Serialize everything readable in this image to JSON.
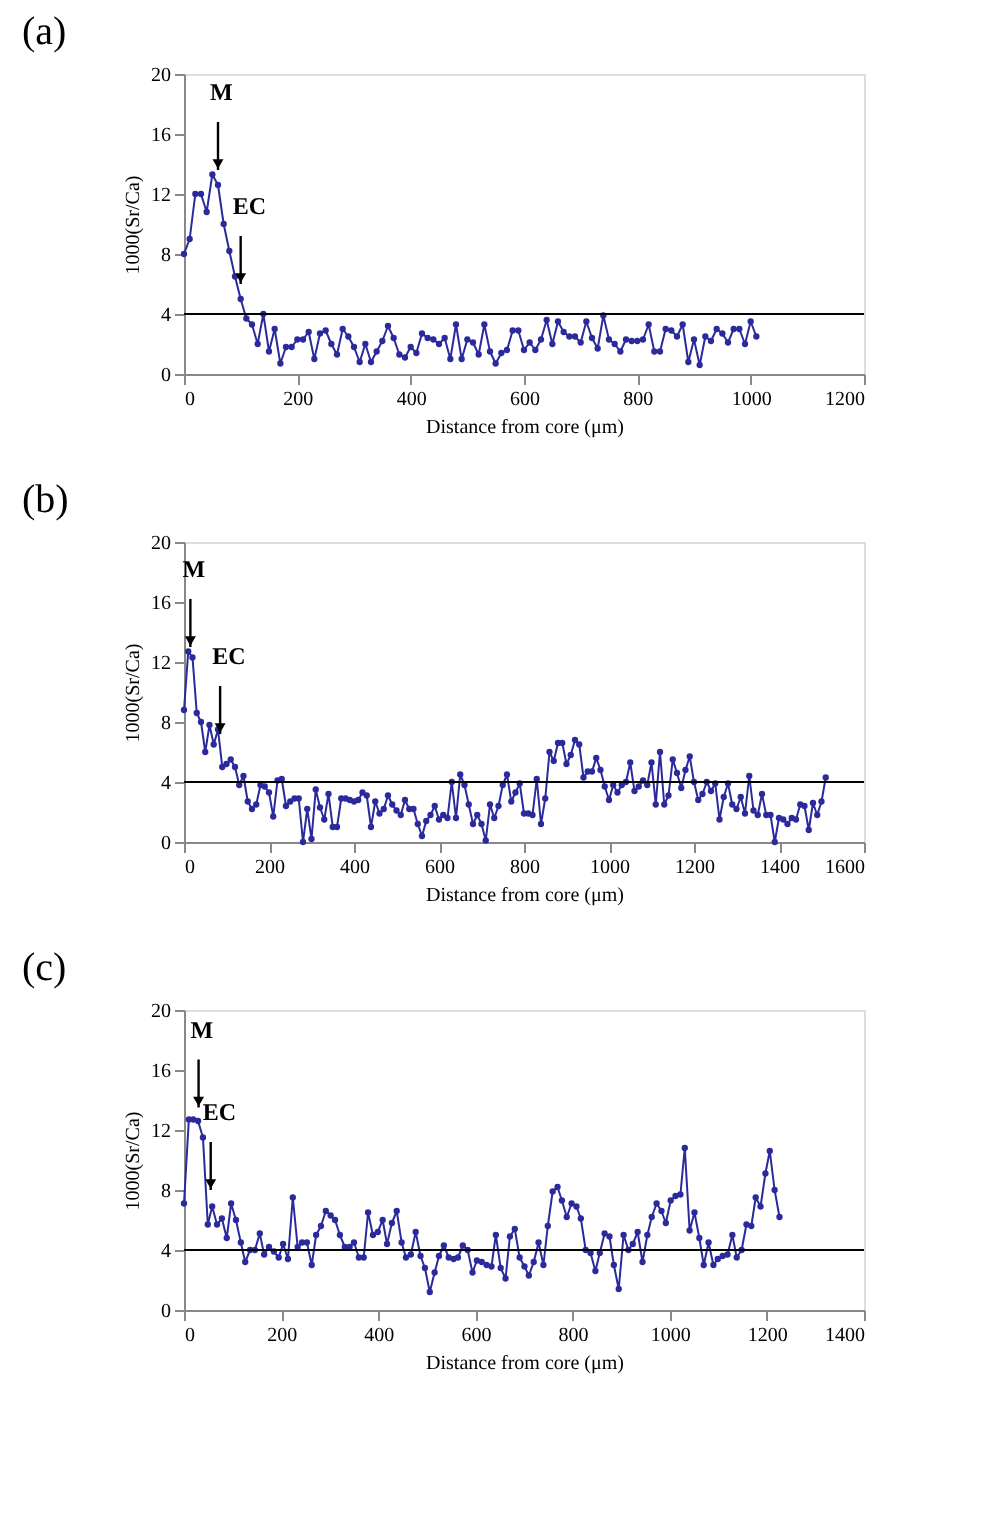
{
  "chart_data": [
    {
      "type": "line",
      "title": "(a)",
      "xlabel": "Distance from core (μm)",
      "ylabel": "1000(Sr/Ca)",
      "marker": "circle",
      "line_style": "solid",
      "xlim": [
        0,
        1200
      ],
      "xticks": [
        0,
        200,
        400,
        600,
        800,
        1000,
        1200
      ],
      "ylim": [
        0,
        20
      ],
      "yticks": [
        0,
        4,
        8,
        12,
        16,
        20
      ],
      "ref_lines": [
        {
          "axis": "y",
          "value": 4,
          "label": null,
          "color": "#000000"
        }
      ],
      "annotations": [
        {
          "text": "M",
          "x": 60,
          "y": 13.6
        },
        {
          "text": "EC",
          "x": 100,
          "y": 6
        }
      ],
      "series": [
        {
          "color": "#2a2a9c",
          "x": [
            0,
            10,
            20,
            30,
            40,
            50,
            60,
            70,
            80,
            90,
            100,
            110,
            120,
            130,
            140,
            150,
            160,
            170,
            180,
            190,
            200,
            210,
            220,
            230,
            240,
            250,
            260,
            270,
            280,
            290,
            300,
            310,
            320,
            330,
            340,
            350,
            360,
            370,
            380,
            390,
            400,
            410,
            420,
            430,
            440,
            450,
            460,
            470,
            480,
            490,
            500,
            510,
            520,
            530,
            540,
            550,
            560,
            570,
            580,
            590,
            600,
            610,
            620,
            630,
            640,
            650,
            660,
            670,
            680,
            690,
            700,
            710,
            720,
            730,
            740,
            750,
            760,
            770,
            780,
            790,
            800,
            810,
            820,
            830,
            840,
            850,
            860,
            870,
            880,
            890,
            900,
            910,
            920,
            930,
            940,
            950,
            960,
            970,
            980,
            990,
            1000,
            1010
          ],
          "values": [
            8,
            9,
            12,
            12,
            10.8,
            13.3,
            12.6,
            10,
            8.2,
            6.5,
            5,
            3.7,
            3.3,
            2,
            4,
            1.5,
            3,
            0.7,
            1.8,
            1.8,
            2.3,
            2.3,
            2.8,
            1,
            2.7,
            2.9,
            2,
            1.3,
            3,
            2.5,
            1.8,
            0.8,
            2,
            0.8,
            1.5,
            2.2,
            3.2,
            2.4,
            1.3,
            1.1,
            1.8,
            1.4,
            2.7,
            2.4,
            2.3,
            2,
            2.4,
            1,
            3.3,
            1,
            2.3,
            2.1,
            1.3,
            3.3,
            1.5,
            0.7,
            1.4,
            1.6,
            2.9,
            2.9,
            1.6,
            2.1,
            1.6,
            2.3,
            3.6,
            2,
            3.5,
            2.8,
            2.5,
            2.5,
            2.1,
            3.5,
            2.4,
            1.7,
            3.9,
            2.3,
            2,
            1.5,
            2.3,
            2.2,
            2.2,
            2.3,
            3.3,
            1.5,
            1.5,
            3,
            2.9,
            2.5,
            3.3,
            0.8,
            2.3,
            0.6,
            2.5,
            2.2,
            3,
            2.7,
            2.1,
            3,
            3,
            2,
            3.5,
            2.5
          ]
        }
      ]
    },
    {
      "type": "line",
      "title": "(b)",
      "xlabel": "Distance from core (μm)",
      "ylabel": "1000(Sr/Ca)",
      "marker": "circle",
      "line_style": "solid",
      "xlim": [
        0,
        1600
      ],
      "xticks": [
        0,
        200,
        400,
        600,
        800,
        1000,
        1200,
        1400,
        1600
      ],
      "ylim": [
        0,
        20
      ],
      "yticks": [
        0,
        4,
        8,
        12,
        16,
        20
      ],
      "ref_lines": [
        {
          "axis": "y",
          "value": 4,
          "label": null,
          "color": "#000000"
        }
      ],
      "annotations": [
        {
          "text": "M",
          "x": 15,
          "y": 13
        },
        {
          "text": "EC",
          "x": 85,
          "y": 7.2
        }
      ],
      "series": [
        {
          "color": "#2a2a9c",
          "x": [
            0,
            10,
            20,
            30,
            40,
            50,
            60,
            70,
            80,
            90,
            100,
            110,
            120,
            130,
            140,
            150,
            160,
            170,
            180,
            190,
            200,
            210,
            220,
            230,
            240,
            250,
            260,
            270,
            280,
            290,
            300,
            310,
            320,
            330,
            340,
            350,
            360,
            370,
            380,
            390,
            400,
            410,
            420,
            430,
            440,
            450,
            460,
            470,
            480,
            490,
            500,
            510,
            520,
            530,
            540,
            550,
            560,
            570,
            580,
            590,
            600,
            610,
            620,
            630,
            640,
            650,
            660,
            670,
            680,
            690,
            700,
            710,
            720,
            730,
            740,
            750,
            760,
            770,
            780,
            790,
            800,
            810,
            820,
            830,
            840,
            850,
            860,
            870,
            880,
            890,
            900,
            910,
            920,
            930,
            940,
            950,
            960,
            970,
            980,
            990,
            1000,
            1010,
            1020,
            1030,
            1040,
            1050,
            1060,
            1070,
            1080,
            1090,
            1100,
            1110,
            1120,
            1130,
            1140,
            1150,
            1160,
            1170,
            1180,
            1190,
            1200,
            1210,
            1220,
            1230,
            1240,
            1250,
            1260,
            1270,
            1280,
            1290,
            1300,
            1310,
            1320,
            1330,
            1340,
            1350,
            1360,
            1370,
            1380,
            1390,
            1400,
            1410,
            1420,
            1430,
            1440,
            1450,
            1460,
            1470,
            1480,
            1490,
            1500,
            1510
          ],
          "values": [
            8.8,
            12.7,
            12.3,
            8.6,
            8,
            6,
            7.8,
            6.5,
            7.5,
            5,
            5.2,
            5.5,
            5,
            3.8,
            4.4,
            2.7,
            2.2,
            2.5,
            3.8,
            3.7,
            3.3,
            1.7,
            4.1,
            4.2,
            2.4,
            2.7,
            2.9,
            2.9,
            0,
            2.2,
            0.2,
            3.5,
            2.3,
            1.5,
            3.2,
            1,
            1,
            2.9,
            2.9,
            2.8,
            2.7,
            2.8,
            3.3,
            3.1,
            1,
            2.7,
            1.9,
            2.2,
            3.1,
            2.5,
            2.1,
            1.8,
            2.8,
            2.2,
            2.2,
            1.2,
            0.4,
            1.4,
            1.8,
            2.4,
            1.5,
            1.8,
            1.6,
            4,
            1.6,
            4.5,
            3.8,
            2.5,
            1.2,
            1.8,
            1.2,
            0.1,
            2.5,
            1.6,
            2.4,
            3.8,
            4.5,
            2.7,
            3.3,
            3.9,
            1.9,
            1.9,
            1.8,
            4.2,
            1.2,
            2.9,
            6,
            5.4,
            6.6,
            6.6,
            5.2,
            5.8,
            6.8,
            6.5,
            4.3,
            4.7,
            4.7,
            5.6,
            4.8,
            3.7,
            2.8,
            3.8,
            3.3,
            3.8,
            4,
            5.3,
            3.4,
            3.7,
            4.1,
            3.8,
            5.3,
            2.5,
            6,
            2.5,
            3.1,
            5.5,
            4.6,
            3.6,
            4.8,
            5.7,
            4,
            2.8,
            3.2,
            4,
            3.4,
            3.9,
            1.5,
            3,
            3.9,
            2.5,
            2.2,
            3,
            1.9,
            4.4,
            2.1,
            1.8,
            3.2,
            1.8,
            1.8,
            0,
            1.6,
            1.5,
            1.2,
            1.6,
            1.5,
            2.5,
            2.4,
            0.8,
            2.6,
            1.8,
            2.7,
            4.3
          ]
        }
      ]
    },
    {
      "type": "line",
      "title": "(c)",
      "xlabel": "Distance from core (μm)",
      "ylabel": "1000(Sr/Ca)",
      "marker": "circle",
      "line_style": "solid",
      "xlim": [
        0,
        1400
      ],
      "xticks": [
        0,
        200,
        400,
        600,
        800,
        1000,
        1200,
        1400
      ],
      "ylim": [
        0,
        20
      ],
      "yticks": [
        0,
        4,
        8,
        12,
        16,
        20
      ],
      "ref_lines": [
        {
          "axis": "y",
          "value": 4,
          "label": null,
          "color": "#000000"
        }
      ],
      "annotations": [
        {
          "text": "M",
          "x": 30,
          "y": 13.5
        },
        {
          "text": "EC",
          "x": 55,
          "y": 8
        }
      ],
      "series": [
        {
          "color": "#2a2a9c",
          "x": [
            0,
            10,
            19,
            29,
            39,
            49,
            58,
            68,
            78,
            88,
            97,
            107,
            117,
            126,
            136,
            146,
            156,
            165,
            175,
            185,
            195,
            204,
            214,
            224,
            234,
            243,
            253,
            263,
            272,
            282,
            292,
            302,
            311,
            321,
            331,
            341,
            350,
            360,
            370,
            379,
            389,
            399,
            409,
            418,
            428,
            438,
            448,
            457,
            467,
            477,
            487,
            496,
            506,
            516,
            525,
            535,
            545,
            555,
            564,
            574,
            584,
            594,
            603,
            613,
            623,
            633,
            642,
            652,
            662,
            671,
            681,
            691,
            701,
            710,
            720,
            730,
            740,
            749,
            759,
            769,
            778,
            788,
            798,
            808,
            817,
            827,
            837,
            847,
            856,
            866,
            876,
            885,
            895,
            905,
            915,
            924,
            934,
            944,
            954,
            963,
            973,
            983,
            992,
            1002,
            1012,
            1022,
            1031,
            1041,
            1051,
            1061,
            1070,
            1080,
            1090,
            1099,
            1109,
            1119,
            1129,
            1138,
            1148,
            1158,
            1168,
            1177,
            1187,
            1197,
            1206,
            1216,
            1226
          ],
          "values": [
            7.1,
            12.7,
            12.7,
            12.6,
            11.5,
            5.7,
            6.9,
            5.7,
            6.1,
            4.8,
            7.1,
            6,
            4.5,
            3.2,
            4,
            4,
            5.1,
            3.7,
            4.2,
            3.9,
            3.5,
            4.4,
            3.4,
            7.5,
            4.2,
            4.5,
            4.5,
            3,
            5,
            5.6,
            6.6,
            6.3,
            6,
            5,
            4.2,
            4.2,
            4.5,
            3.5,
            3.5,
            6.5,
            5,
            5.2,
            6,
            4.4,
            5.8,
            6.6,
            4.5,
            3.5,
            3.7,
            5.2,
            3.6,
            2.8,
            1.2,
            2.5,
            3.6,
            4.3,
            3.5,
            3.4,
            3.5,
            4.3,
            4,
            2.5,
            3.3,
            3.2,
            3,
            2.9,
            5,
            2.8,
            2.1,
            4.9,
            5.4,
            3.5,
            2.9,
            2.3,
            3.2,
            4.5,
            3,
            5.6,
            7.9,
            8.2,
            7.3,
            6.2,
            7.1,
            6.9,
            6.1,
            4,
            3.8,
            2.6,
            3.8,
            5.1,
            4.9,
            3,
            1.4,
            5,
            4,
            4.4,
            5.2,
            3.2,
            5,
            6.2,
            7.1,
            6.6,
            5.8,
            7.3,
            7.6,
            7.7,
            10.8,
            5.3,
            6.5,
            4.8,
            3,
            4.5,
            3,
            3.4,
            3.6,
            3.7,
            5,
            3.5,
            4,
            5.7,
            5.6,
            7.5,
            6.9,
            9.1,
            10.6,
            8,
            6.2
          ]
        }
      ]
    }
  ]
}
